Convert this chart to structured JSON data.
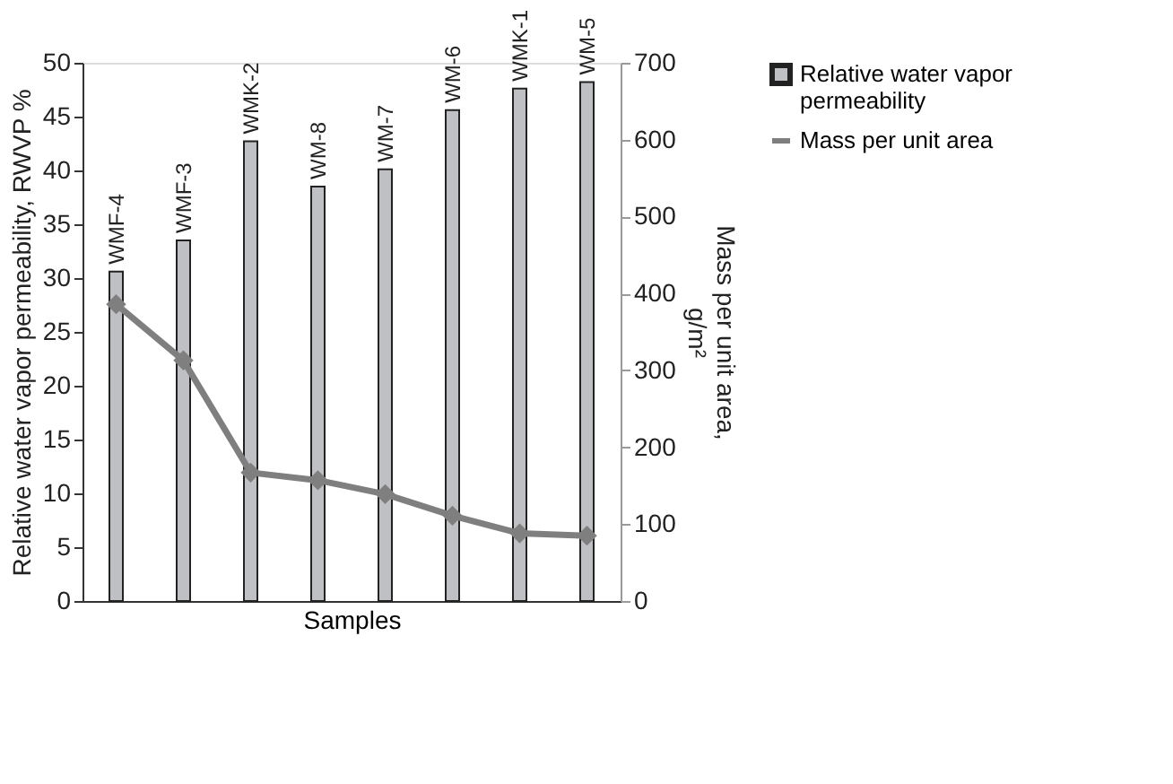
{
  "chart_data": {
    "type": "bar",
    "xlabel": "Samples",
    "ylabel": "Relative water vapor permeability, RWVP %",
    "y2label": "Mass per unit area, g/m²",
    "categories": [
      "WMF-4",
      "WMF-3",
      "WMK-2",
      "WM-8",
      "WM-7",
      "WM-6",
      "WMK-1",
      "WM-5"
    ],
    "series": [
      {
        "name": "Relative water vapor permeability",
        "color": "#bfc0c4",
        "values": [
          30.6,
          33.5,
          42.7,
          38.5,
          40.1,
          45.6,
          47.6,
          48.2
        ]
      },
      {
        "name": "Mass per unit area",
        "type": "line",
        "axis": "y2",
        "color": "#7f7f7f",
        "marker": "diamond",
        "values": [
          386,
          313,
          167,
          157,
          139,
          111,
          88,
          85
        ]
      }
    ],
    "ylim": [
      0,
      50
    ],
    "yticks": [
      0,
      5,
      10,
      15,
      20,
      25,
      30,
      35,
      40,
      45,
      50
    ],
    "y2lim": [
      0,
      700
    ],
    "y2ticks": [
      0,
      100,
      200,
      300,
      400,
      500,
      600,
      700
    ],
    "grid": false,
    "legend": "top right"
  }
}
